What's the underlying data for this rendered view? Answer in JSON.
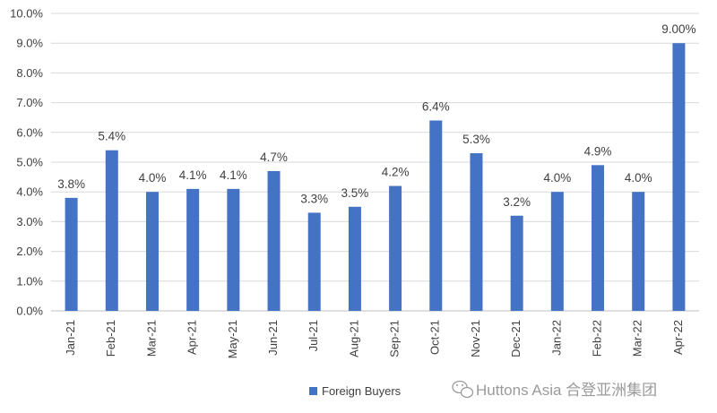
{
  "chart_data": {
    "type": "bar",
    "title": "",
    "xlabel": "",
    "ylabel": "",
    "categories": [
      "Jan-21",
      "Feb-21",
      "Mar-21",
      "Apr-21",
      "May-21",
      "Jun-21",
      "Jul-21",
      "Aug-21",
      "Sep-21",
      "Oct-21",
      "Nov-21",
      "Dec-21",
      "Jan-22",
      "Feb-22",
      "Mar-22",
      "Apr-22"
    ],
    "series": [
      {
        "name": "Foreign Buyers",
        "color": "#4472c4",
        "values": [
          3.8,
          5.4,
          4.0,
          4.1,
          4.1,
          4.7,
          3.3,
          3.5,
          4.2,
          6.4,
          5.3,
          3.2,
          4.0,
          4.9,
          4.0,
          9.0
        ],
        "data_labels": [
          "3.8%",
          "5.4%",
          "4.0%",
          "4.1%",
          "4.1%",
          "4.7%",
          "3.3%",
          "3.5%",
          "4.2%",
          "6.4%",
          "5.3%",
          "3.2%",
          "4.0%",
          "4.9%",
          "4.0%",
          "9.00%"
        ]
      }
    ],
    "ylim": [
      0,
      10
    ],
    "yticks": [
      0,
      1,
      2,
      3,
      4,
      5,
      6,
      7,
      8,
      9,
      10
    ],
    "ytick_labels": [
      "0.0%",
      "1.0%",
      "2.0%",
      "3.0%",
      "4.0%",
      "5.0%",
      "6.0%",
      "7.0%",
      "8.0%",
      "9.0%",
      "10.0%"
    ],
    "grid": true,
    "legend": {
      "position": "bottom-center",
      "entries": [
        "Foreign Buyers"
      ]
    }
  },
  "watermark": {
    "text": "Huttons Asia 合登亚洲集团",
    "icon": "wechat-icon"
  }
}
